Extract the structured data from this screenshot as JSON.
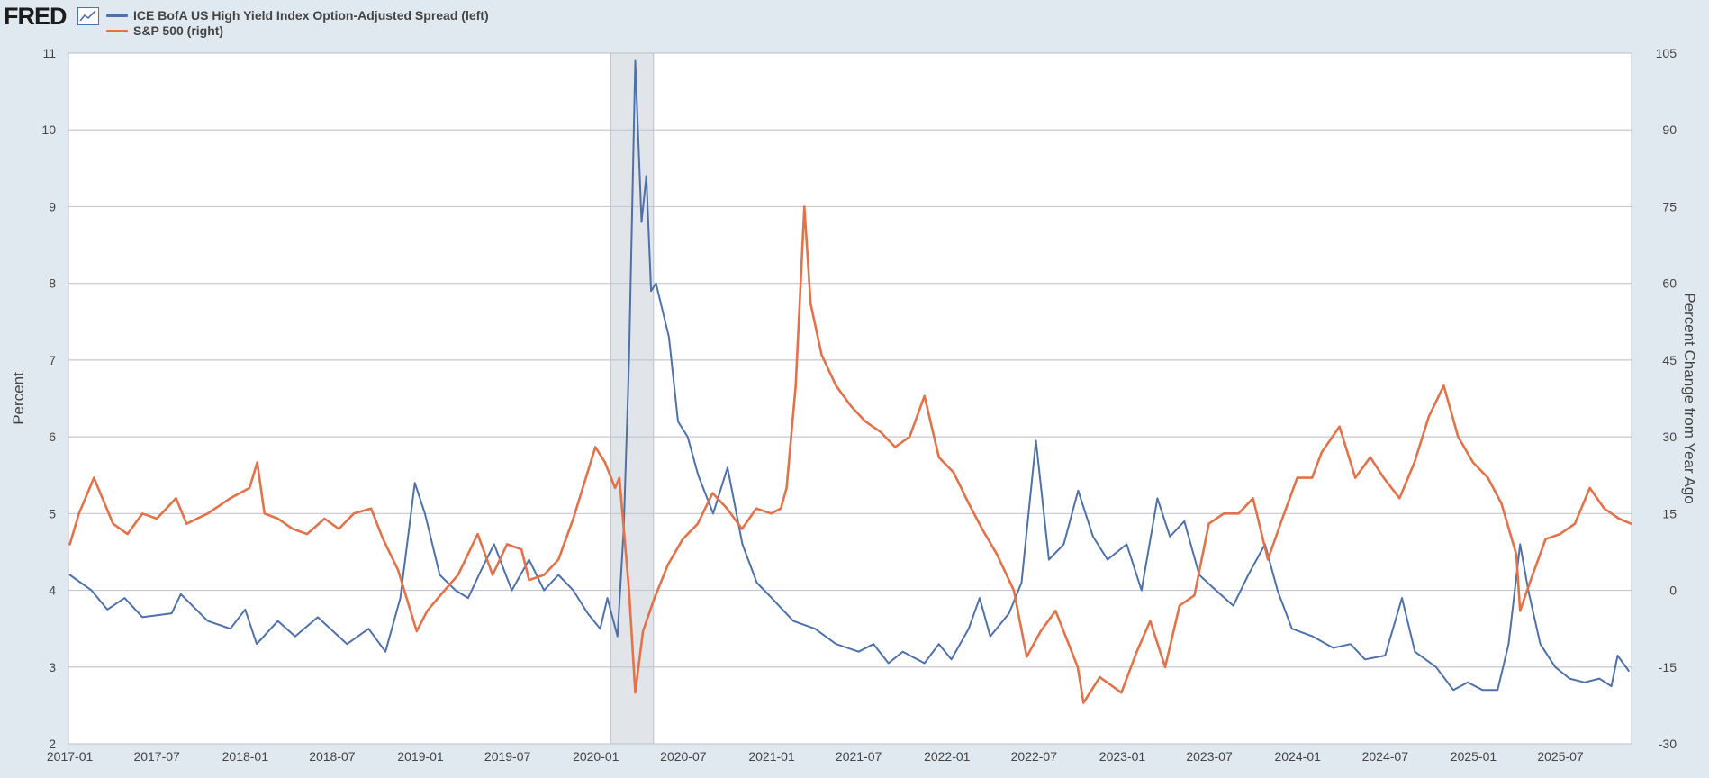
{
  "header": {
    "logo_text": "FRED",
    "logo_icon": "line-chart-icon"
  },
  "chart_data": {
    "type": "line",
    "title": "",
    "dual_axis": true,
    "grid": true,
    "legend_placement": "top-left",
    "xlim": [
      "2016-12-29",
      "2025-11-26"
    ],
    "recession_shade": {
      "start": "2020-02-01",
      "end": "2020-04-30",
      "color": "#e1e5ea"
    },
    "x_tick_labels": [
      "2017-01",
      "2017-07",
      "2018-01",
      "2018-07",
      "2019-01",
      "2019-07",
      "2020-01",
      "2020-07",
      "2021-01",
      "2021-07",
      "2022-01",
      "2022-07",
      "2023-01",
      "2023-07",
      "2024-01",
      "2024-07",
      "2025-01",
      "2025-07"
    ],
    "left_axis": {
      "label": "Percent",
      "ylim": [
        2,
        11
      ],
      "ticks": [
        "2",
        "3",
        "4",
        "5",
        "6",
        "7",
        "8",
        "9",
        "10",
        "11"
      ]
    },
    "right_axis": {
      "label": "Percent Change from Year Ago",
      "ylim": [
        -30,
        105
      ],
      "ticks": [
        "-30",
        "-15",
        "0",
        "15",
        "30",
        "45",
        "60",
        "75",
        "90",
        "105"
      ]
    },
    "series": [
      {
        "name": "ICE BofA US High Yield Index Option-Adjusted Spread (left)",
        "axis": "left",
        "color": "#4e71a8",
        "points": [
          [
            "2017-01-01",
            4.2
          ],
          [
            "2017-02-15",
            4.0
          ],
          [
            "2017-03-20",
            3.75
          ],
          [
            "2017-04-25",
            3.9
          ],
          [
            "2017-06-01",
            3.65
          ],
          [
            "2017-08-01",
            3.7
          ],
          [
            "2017-08-20",
            3.95
          ],
          [
            "2017-10-15",
            3.6
          ],
          [
            "2017-12-01",
            3.5
          ],
          [
            "2018-01-01",
            3.75
          ],
          [
            "2018-01-25",
            3.3
          ],
          [
            "2018-03-10",
            3.6
          ],
          [
            "2018-04-15",
            3.4
          ],
          [
            "2018-06-01",
            3.65
          ],
          [
            "2018-08-01",
            3.3
          ],
          [
            "2018-09-15",
            3.5
          ],
          [
            "2018-10-20",
            3.2
          ],
          [
            "2018-11-20",
            3.9
          ],
          [
            "2018-12-20",
            5.4
          ],
          [
            "2019-01-10",
            5.0
          ],
          [
            "2019-02-10",
            4.2
          ],
          [
            "2019-03-15",
            4.0
          ],
          [
            "2019-04-10",
            3.9
          ],
          [
            "2019-05-10",
            4.3
          ],
          [
            "2019-06-03",
            4.6
          ],
          [
            "2019-07-10",
            4.0
          ],
          [
            "2019-08-15",
            4.4
          ],
          [
            "2019-09-15",
            4.0
          ],
          [
            "2019-10-15",
            4.2
          ],
          [
            "2019-11-15",
            4.0
          ],
          [
            "2019-12-15",
            3.7
          ],
          [
            "2020-01-10",
            3.5
          ],
          [
            "2020-01-25",
            3.9
          ],
          [
            "2020-02-15",
            3.4
          ],
          [
            "2020-02-28",
            4.8
          ],
          [
            "2020-03-10",
            7.0
          ],
          [
            "2020-03-23",
            10.9
          ],
          [
            "2020-04-05",
            8.8
          ],
          [
            "2020-04-15",
            9.4
          ],
          [
            "2020-04-25",
            7.9
          ],
          [
            "2020-05-05",
            8.0
          ],
          [
            "2020-06-01",
            7.3
          ],
          [
            "2020-06-20",
            6.2
          ],
          [
            "2020-07-10",
            6.0
          ],
          [
            "2020-08-01",
            5.5
          ],
          [
            "2020-09-01",
            5.0
          ],
          [
            "2020-10-01",
            5.6
          ],
          [
            "2020-11-01",
            4.6
          ],
          [
            "2020-12-01",
            4.1
          ],
          [
            "2021-01-01",
            3.9
          ],
          [
            "2021-02-15",
            3.6
          ],
          [
            "2021-04-01",
            3.5
          ],
          [
            "2021-05-15",
            3.3
          ],
          [
            "2021-07-01",
            3.2
          ],
          [
            "2021-08-01",
            3.3
          ],
          [
            "2021-09-01",
            3.05
          ],
          [
            "2021-10-01",
            3.2
          ],
          [
            "2021-11-15",
            3.05
          ],
          [
            "2021-12-15",
            3.3
          ],
          [
            "2022-01-10",
            3.1
          ],
          [
            "2022-02-15",
            3.5
          ],
          [
            "2022-03-10",
            3.9
          ],
          [
            "2022-04-01",
            3.4
          ],
          [
            "2022-05-10",
            3.7
          ],
          [
            "2022-06-05",
            4.1
          ],
          [
            "2022-07-05",
            5.95
          ],
          [
            "2022-08-01",
            4.4
          ],
          [
            "2022-09-01",
            4.6
          ],
          [
            "2022-10-01",
            5.3
          ],
          [
            "2022-11-01",
            4.7
          ],
          [
            "2022-12-01",
            4.4
          ],
          [
            "2023-01-10",
            4.6
          ],
          [
            "2023-02-10",
            4.0
          ],
          [
            "2023-03-15",
            5.2
          ],
          [
            "2023-04-10",
            4.7
          ],
          [
            "2023-05-10",
            4.9
          ],
          [
            "2023-06-10",
            4.2
          ],
          [
            "2023-07-15",
            4.0
          ],
          [
            "2023-08-20",
            3.8
          ],
          [
            "2023-09-20",
            4.2
          ],
          [
            "2023-10-25",
            4.6
          ],
          [
            "2023-11-20",
            4.0
          ],
          [
            "2023-12-20",
            3.5
          ],
          [
            "2024-02-01",
            3.4
          ],
          [
            "2024-03-15",
            3.25
          ],
          [
            "2024-04-20",
            3.3
          ],
          [
            "2024-05-20",
            3.1
          ],
          [
            "2024-07-01",
            3.15
          ],
          [
            "2024-08-05",
            3.9
          ],
          [
            "2024-09-01",
            3.2
          ],
          [
            "2024-10-15",
            3.0
          ],
          [
            "2024-11-20",
            2.7
          ],
          [
            "2024-12-20",
            2.8
          ],
          [
            "2025-01-20",
            2.7
          ],
          [
            "2025-02-20",
            2.7
          ],
          [
            "2025-03-15",
            3.3
          ],
          [
            "2025-04-08",
            4.6
          ],
          [
            "2025-04-25",
            4.0
          ],
          [
            "2025-05-20",
            3.3
          ],
          [
            "2025-06-20",
            3.0
          ],
          [
            "2025-07-20",
            2.85
          ],
          [
            "2025-08-20",
            2.8
          ],
          [
            "2025-09-20",
            2.85
          ],
          [
            "2025-10-15",
            2.75
          ],
          [
            "2025-10-28",
            3.15
          ],
          [
            "2025-11-20",
            2.95
          ]
        ]
      },
      {
        "name": "S&P 500 (right)",
        "axis": "right",
        "color": "#e1724a",
        "points": [
          [
            "2017-01-01",
            9
          ],
          [
            "2017-01-20",
            15
          ],
          [
            "2017-02-20",
            22
          ],
          [
            "2017-04-01",
            13
          ],
          [
            "2017-05-01",
            11
          ],
          [
            "2017-06-01",
            15
          ],
          [
            "2017-07-01",
            14
          ],
          [
            "2017-08-10",
            18
          ],
          [
            "2017-09-01",
            13
          ],
          [
            "2017-10-15",
            15
          ],
          [
            "2017-12-01",
            18
          ],
          [
            "2018-01-10",
            20
          ],
          [
            "2018-01-26",
            25
          ],
          [
            "2018-02-10",
            15
          ],
          [
            "2018-03-10",
            14
          ],
          [
            "2018-04-10",
            12
          ],
          [
            "2018-05-10",
            11
          ],
          [
            "2018-06-15",
            14
          ],
          [
            "2018-07-15",
            12
          ],
          [
            "2018-08-15",
            15
          ],
          [
            "2018-09-20",
            16
          ],
          [
            "2018-10-15",
            10
          ],
          [
            "2018-11-15",
            4
          ],
          [
            "2018-12-24",
            -8
          ],
          [
            "2019-01-15",
            -4
          ],
          [
            "2019-02-20",
            0
          ],
          [
            "2019-03-20",
            3
          ],
          [
            "2019-04-30",
            11
          ],
          [
            "2019-05-31",
            3
          ],
          [
            "2019-06-30",
            9
          ],
          [
            "2019-07-30",
            8
          ],
          [
            "2019-08-15",
            2
          ],
          [
            "2019-09-15",
            3
          ],
          [
            "2019-10-15",
            6
          ],
          [
            "2019-11-15",
            14
          ],
          [
            "2019-12-31",
            28
          ],
          [
            "2020-01-20",
            25
          ],
          [
            "2020-02-10",
            20
          ],
          [
            "2020-02-19",
            22
          ],
          [
            "2020-03-10",
            0
          ],
          [
            "2020-03-23",
            -20
          ],
          [
            "2020-04-08",
            -8
          ],
          [
            "2020-04-30",
            -2
          ],
          [
            "2020-05-30",
            5
          ],
          [
            "2020-06-30",
            10
          ],
          [
            "2020-07-31",
            13
          ],
          [
            "2020-08-31",
            19
          ],
          [
            "2020-09-30",
            16
          ],
          [
            "2020-10-31",
            12
          ],
          [
            "2020-11-30",
            16
          ],
          [
            "2020-12-31",
            15
          ],
          [
            "2021-01-20",
            16
          ],
          [
            "2021-02-01",
            20
          ],
          [
            "2021-02-20",
            40
          ],
          [
            "2021-03-10",
            75
          ],
          [
            "2021-03-23",
            56
          ],
          [
            "2021-04-15",
            46
          ],
          [
            "2021-05-15",
            40
          ],
          [
            "2021-06-15",
            36
          ],
          [
            "2021-07-15",
            33
          ],
          [
            "2021-08-15",
            31
          ],
          [
            "2021-09-15",
            28
          ],
          [
            "2021-10-15",
            30
          ],
          [
            "2021-11-15",
            38
          ],
          [
            "2021-12-15",
            26
          ],
          [
            "2022-01-15",
            23
          ],
          [
            "2022-02-15",
            17
          ],
          [
            "2022-03-15",
            12
          ],
          [
            "2022-04-15",
            7
          ],
          [
            "2022-05-20",
            0
          ],
          [
            "2022-06-16",
            -13
          ],
          [
            "2022-07-15",
            -8
          ],
          [
            "2022-08-15",
            -4
          ],
          [
            "2022-09-30",
            -15
          ],
          [
            "2022-10-12",
            -22
          ],
          [
            "2022-11-15",
            -17
          ],
          [
            "2022-12-30",
            -20
          ],
          [
            "2023-01-31",
            -12
          ],
          [
            "2023-02-28",
            -6
          ],
          [
            "2023-03-31",
            -15
          ],
          [
            "2023-04-30",
            -3
          ],
          [
            "2023-05-31",
            -1
          ],
          [
            "2023-06-30",
            13
          ],
          [
            "2023-07-31",
            15
          ],
          [
            "2023-08-31",
            15
          ],
          [
            "2023-09-30",
            18
          ],
          [
            "2023-10-31",
            6
          ],
          [
            "2023-11-30",
            14
          ],
          [
            "2023-12-31",
            22
          ],
          [
            "2024-01-31",
            22
          ],
          [
            "2024-02-20",
            27
          ],
          [
            "2024-03-28",
            32
          ],
          [
            "2024-04-30",
            22
          ],
          [
            "2024-05-31",
            26
          ],
          [
            "2024-06-28",
            22
          ],
          [
            "2024-07-31",
            18
          ],
          [
            "2024-08-31",
            25
          ],
          [
            "2024-09-30",
            34
          ],
          [
            "2024-10-31",
            40
          ],
          [
            "2024-11-30",
            30
          ],
          [
            "2024-12-31",
            25
          ],
          [
            "2025-01-31",
            22
          ],
          [
            "2025-02-28",
            17
          ],
          [
            "2025-03-31",
            7
          ],
          [
            "2025-04-08",
            -4
          ],
          [
            "2025-04-30",
            2
          ],
          [
            "2025-05-31",
            10
          ],
          [
            "2025-06-30",
            11
          ],
          [
            "2025-07-31",
            13
          ],
          [
            "2025-08-31",
            20
          ],
          [
            "2025-09-30",
            16
          ],
          [
            "2025-10-31",
            14
          ],
          [
            "2025-11-25",
            13
          ]
        ]
      }
    ]
  }
}
